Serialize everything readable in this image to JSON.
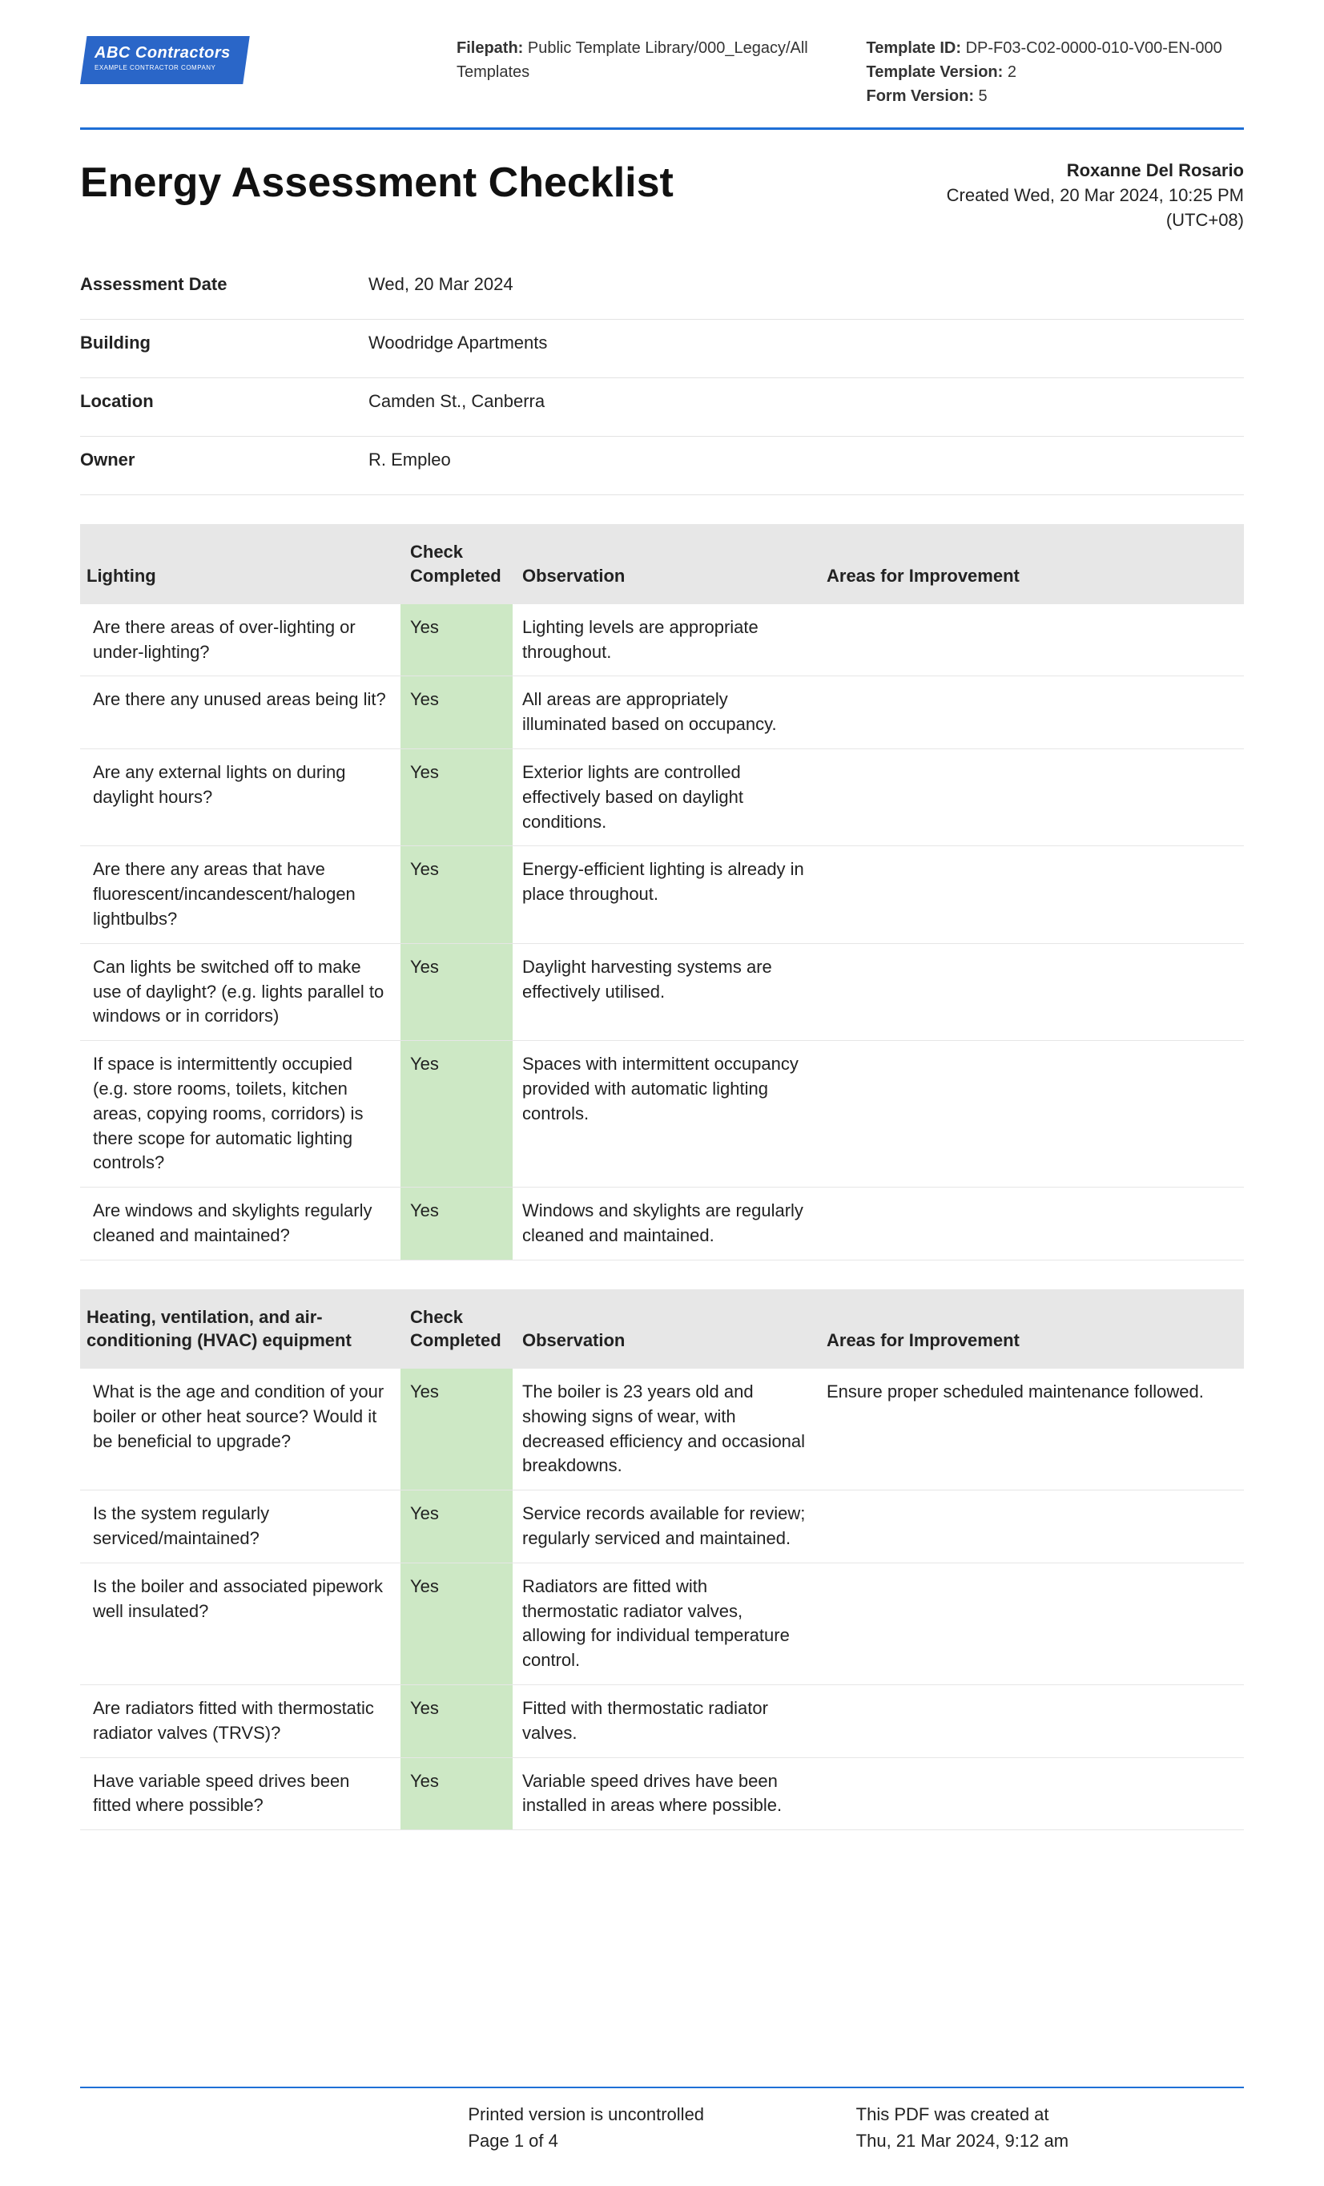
{
  "header": {
    "logo_main": "ABC Contractors",
    "logo_sub": "EXAMPLE CONTRACTOR COMPANY",
    "filepath_label": "Filepath:",
    "filepath": "Public Template Library/000_Legacy/All Templates",
    "template_id_label": "Template ID:",
    "template_id": "DP-F03-C02-0000-010-V00-EN-000",
    "template_version_label": "Template Version:",
    "template_version": "2",
    "form_version_label": "Form Version:",
    "form_version": "5"
  },
  "title": "Energy Assessment Checklist",
  "creator": {
    "name": "Roxanne Del Rosario",
    "created_line": "Created Wed, 20 Mar 2024, 10:25 PM",
    "tz": "(UTC+08)"
  },
  "info": [
    {
      "label": "Assessment Date",
      "value": "Wed, 20 Mar 2024"
    },
    {
      "label": "Building",
      "value": "Woodridge Apartments"
    },
    {
      "label": "Location",
      "value": "Camden St., Canberra"
    },
    {
      "label": "Owner",
      "value": "R. Empleo"
    }
  ],
  "columns": {
    "check": "Check Completed",
    "observation": "Observation",
    "improvement": "Areas for Improvement"
  },
  "sections": [
    {
      "name": "Lighting",
      "rows": [
        {
          "q": " Are there areas of over-lighting or under-lighting?",
          "c": "Yes",
          "o": "Lighting levels are appropriate throughout.",
          "i": ""
        },
        {
          "q": "Are there any unused areas being lit?",
          "c": "Yes",
          "o": "All areas are appropriately illuminated based on occupancy.",
          "i": ""
        },
        {
          "q": " Are any external lights on during daylight hours?",
          "c": "Yes",
          "o": "Exterior lights are controlled effectively based on daylight conditions.",
          "i": ""
        },
        {
          "q": "Are there any areas that have fluorescent/incandescent/halogen lightbulbs?",
          "c": "Yes",
          "o": "Energy-efficient lighting is already in place throughout.",
          "i": ""
        },
        {
          "q": "Can lights be switched off to make use of daylight? (e.g. lights parallel to windows or in corridors)",
          "c": "Yes",
          "o": "Daylight harvesting systems are effectively utilised.",
          "i": ""
        },
        {
          "q": "If space is intermittently occupied (e.g. store rooms, toilets, kitchen areas, copying rooms, corridors) is there scope for automatic lighting controls?",
          "c": "Yes",
          "o": "Spaces with intermittent occupancy provided with automatic lighting controls.",
          "i": ""
        },
        {
          "q": "Are windows and skylights regularly cleaned and maintained?",
          "c": "Yes",
          "o": "Windows and skylights are regularly cleaned and maintained.",
          "i": ""
        }
      ]
    },
    {
      "name": "Heating, ventilation, and air-conditioning (HVAC) equipment",
      "rows": [
        {
          "q": "What is the age and condition of your boiler or other heat source? Would it be beneficial to upgrade?",
          "c": "Yes",
          "o": "The boiler is 23 years old and showing signs of wear, with decreased efficiency and occasional breakdowns.",
          "i": "Ensure proper scheduled maintenance followed."
        },
        {
          "q": "Is the system regularly serviced/maintained?",
          "c": "Yes",
          "o": "Service records available for review; regularly serviced and maintained.",
          "i": ""
        },
        {
          "q": "Is the boiler and associated pipework well insulated?",
          "c": "Yes",
          "o": "Radiators are fitted with thermostatic radiator valves, allowing for individual temperature control.",
          "i": ""
        },
        {
          "q": "Are radiators fitted with thermostatic radiator valves (TRVS)?",
          "c": "Yes",
          "o": "Fitted with thermostatic radiator valves.",
          "i": ""
        },
        {
          "q": "Have variable speed drives been fitted where possible?",
          "c": "Yes",
          "o": "Variable speed drives have been installed in areas where possible.",
          "i": ""
        }
      ]
    }
  ],
  "footer": {
    "uncontrolled": "Printed version is uncontrolled",
    "page": "Page 1 of 4",
    "created_label": "This PDF was created at",
    "created_at": "Thu, 21 Mar 2024, 9:12 am"
  }
}
